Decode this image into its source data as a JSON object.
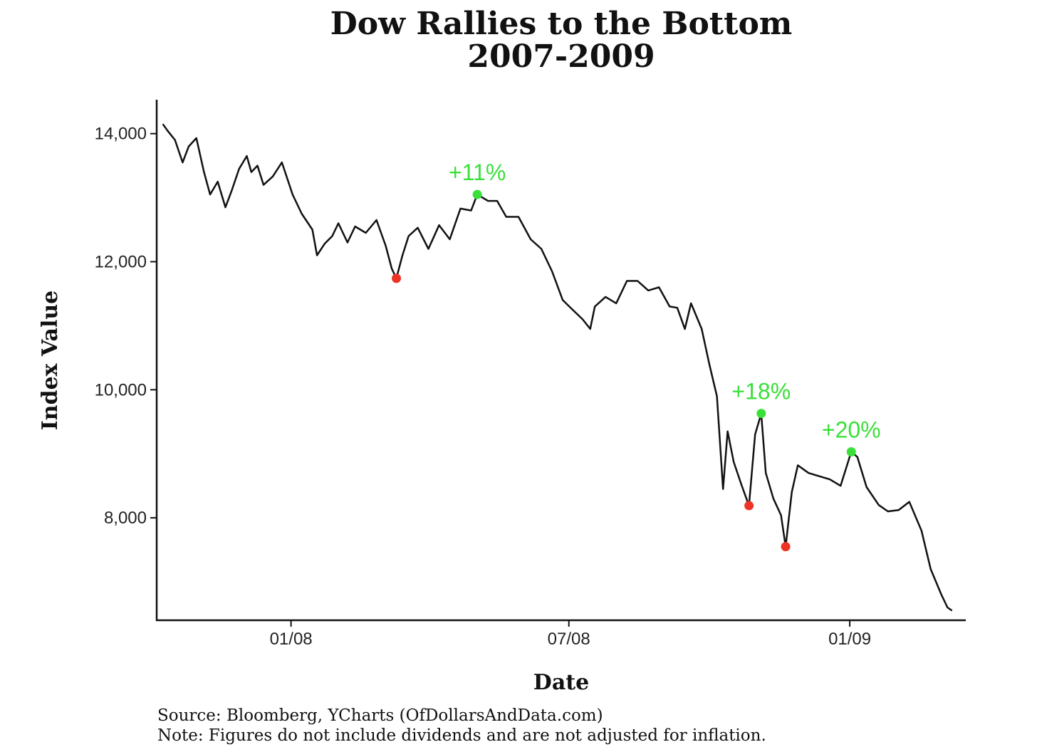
{
  "chart_data": {
    "type": "line",
    "title": [
      "Dow Rallies to the Bottom",
      "2007-2009"
    ],
    "xlabel": "Date",
    "ylabel": "Index Value",
    "x_ticks": [
      {
        "date": "2008-01-01",
        "label": "01/08"
      },
      {
        "date": "2008-07-01",
        "label": "07/08"
      },
      {
        "date": "2009-01-01",
        "label": "01/09"
      }
    ],
    "y_ticks": [
      {
        "value": 8000,
        "label": "8,000"
      },
      {
        "value": 10000,
        "label": "10,000"
      },
      {
        "value": 12000,
        "label": "12,000"
      },
      {
        "value": 14000,
        "label": "14,000"
      }
    ],
    "xlim": [
      "2007-10-05",
      "2009-03-18"
    ],
    "ylim": [
      6400,
      14530
    ],
    "line_color": "#111111",
    "grid": false,
    "series": [
      {
        "x": [
          "2007-10-09",
          "2007-10-12",
          "2007-10-17",
          "2007-10-22",
          "2007-10-26",
          "2007-10-31",
          "2007-11-05",
          "2007-11-09",
          "2007-11-14",
          "2007-11-19",
          "2007-11-23",
          "2007-11-28",
          "2007-12-03",
          "2007-12-06",
          "2007-12-10",
          "2007-12-14",
          "2007-12-20",
          "2007-12-26",
          "2008-01-02",
          "2008-01-08",
          "2008-01-15",
          "2008-01-18",
          "2008-01-23",
          "2008-01-28",
          "2008-02-01",
          "2008-02-07",
          "2008-02-12",
          "2008-02-19",
          "2008-02-26",
          "2008-03-03",
          "2008-03-07",
          "2008-03-10",
          "2008-03-14",
          "2008-03-18",
          "2008-03-24",
          "2008-03-31",
          "2008-04-07",
          "2008-04-14",
          "2008-04-21",
          "2008-04-28",
          "2008-05-02",
          "2008-05-09",
          "2008-05-15",
          "2008-05-21",
          "2008-05-29",
          "2008-06-06",
          "2008-06-13",
          "2008-06-20",
          "2008-06-27",
          "2008-07-03",
          "2008-07-10",
          "2008-07-15",
          "2008-07-18",
          "2008-07-25",
          "2008-08-01",
          "2008-08-08",
          "2008-08-15",
          "2008-08-22",
          "2008-08-29",
          "2008-09-05",
          "2008-09-10",
          "2008-09-15",
          "2008-09-19",
          "2008-09-26",
          "2008-10-01",
          "2008-10-06",
          "2008-10-10",
          "2008-10-13",
          "2008-10-17",
          "2008-10-22",
          "2008-10-27",
          "2008-10-31",
          "2008-11-04",
          "2008-11-07",
          "2008-11-12",
          "2008-11-17",
          "2008-11-20",
          "2008-11-24",
          "2008-11-28",
          "2008-12-05",
          "2008-12-12",
          "2008-12-19",
          "2008-12-26",
          "2009-01-02",
          "2009-01-06",
          "2009-01-12",
          "2009-01-20",
          "2009-01-26",
          "2009-02-02",
          "2009-02-09",
          "2009-02-17",
          "2009-02-23",
          "2009-03-02",
          "2009-03-06",
          "2009-03-09"
        ],
        "y": [
          14150,
          14050,
          13900,
          13550,
          13800,
          13930,
          13400,
          13050,
          13250,
          12850,
          13100,
          13450,
          13650,
          13400,
          13500,
          13200,
          13330,
          13550,
          13050,
          12750,
          12500,
          12100,
          12280,
          12400,
          12600,
          12300,
          12550,
          12450,
          12650,
          12250,
          11890,
          11740,
          12100,
          12400,
          12530,
          12200,
          12570,
          12350,
          12830,
          12800,
          13050,
          12950,
          12950,
          12700,
          12700,
          12350,
          12200,
          11850,
          11400,
          11260,
          11100,
          10950,
          11300,
          11450,
          11350,
          11700,
          11700,
          11550,
          11600,
          11300,
          11280,
          10950,
          11350,
          10950,
          10400,
          9900,
          8450,
          9350,
          8870,
          8520,
          8190,
          9300,
          9630,
          8700,
          8300,
          8040,
          7550,
          8400,
          8820,
          8700,
          8650,
          8600,
          8500,
          9030,
          8950,
          8480,
          8200,
          8100,
          8120,
          8250,
          7800,
          7200,
          6800,
          6600,
          6550
        ]
      }
    ],
    "annotations": [
      {
        "type": "low",
        "date": "2008-03-10",
        "value": 11740,
        "color": "#ee3324"
      },
      {
        "type": "high",
        "date": "2008-05-02",
        "value": 13050,
        "color": "#39e039",
        "label": "+11%"
      },
      {
        "type": "low",
        "date": "2008-10-27",
        "value": 8190,
        "color": "#ee3324"
      },
      {
        "type": "high",
        "date": "2008-11-04",
        "value": 9630,
        "color": "#39e039",
        "label": "+18%"
      },
      {
        "type": "low",
        "date": "2008-11-20",
        "value": 7550,
        "color": "#ee3324"
      },
      {
        "type": "high",
        "date": "2009-01-02",
        "value": 9030,
        "color": "#39e039",
        "label": "+20%"
      }
    ]
  },
  "footer": {
    "source": "Source: Bloomberg, YCharts (OfDollarsAndData.com)",
    "note": "Note: Figures do not include dividends and are not adjusted for inflation."
  }
}
